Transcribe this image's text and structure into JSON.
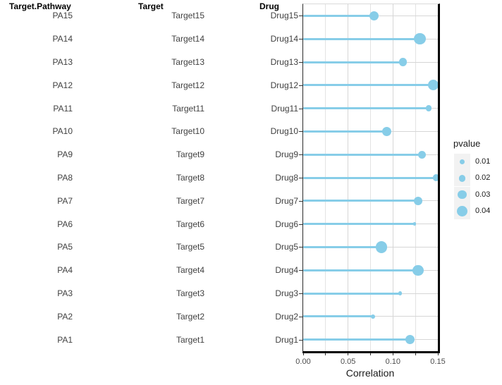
{
  "columns": {
    "pathway_header": "Target.Pathway",
    "target_header": "Target",
    "drug_header": "Drug"
  },
  "axis": {
    "xlabel": "Correlation",
    "tick_labels": [
      "0.00",
      "0.05",
      "0.10",
      "0.15"
    ]
  },
  "legend": {
    "title": "pvalue",
    "entries": [
      {
        "label": "0.01",
        "pvalue": 0.01
      },
      {
        "label": "0.02",
        "pvalue": 0.02
      },
      {
        "label": "0.03",
        "pvalue": 0.03
      },
      {
        "label": "0.04",
        "pvalue": 0.04
      }
    ]
  },
  "colors": {
    "lollipop": "#87cde8",
    "grid_major": "#d6d6d6",
    "grid_minor": "#e3e3e3",
    "axis_line": "#000000",
    "legend_key_bg": "#f2f2f2",
    "label_text": "#404040"
  },
  "chart_data": {
    "type": "lollipop",
    "orientation": "horizontal",
    "xlabel": "Correlation",
    "xlim": [
      0,
      0.152
    ],
    "x_major_ticks": [
      0.0,
      0.05,
      0.1,
      0.15
    ],
    "x_minor_step": 0.025,
    "grid": true,
    "legend_position": "right",
    "size_legend": {
      "title": "pvalue",
      "breaks": [
        0.01,
        0.02,
        0.03,
        0.04
      ]
    },
    "rows": [
      {
        "pathway": "PA15",
        "target": "Target15",
        "drug": "Drug15",
        "correlation": 0.079,
        "pvalue": 0.035
      },
      {
        "pathway": "PA14",
        "target": "Target14",
        "drug": "Drug14",
        "correlation": 0.13,
        "pvalue": 0.045
      },
      {
        "pathway": "PA13",
        "target": "Target13",
        "drug": "Drug13",
        "correlation": 0.111,
        "pvalue": 0.025
      },
      {
        "pathway": "PA12",
        "target": "Target12",
        "drug": "Drug12",
        "correlation": 0.145,
        "pvalue": 0.04
      },
      {
        "pathway": "PA11",
        "target": "Target11",
        "drug": "Drug11",
        "correlation": 0.14,
        "pvalue": 0.015
      },
      {
        "pathway": "PA10",
        "target": "Target10",
        "drug": "Drug10",
        "correlation": 0.093,
        "pvalue": 0.035
      },
      {
        "pathway": "PA9",
        "target": "Target9",
        "drug": "Drug9",
        "correlation": 0.132,
        "pvalue": 0.025
      },
      {
        "pathway": "PA8",
        "target": "Target8",
        "drug": "Drug8",
        "correlation": 0.148,
        "pvalue": 0.02
      },
      {
        "pathway": "PA7",
        "target": "Target7",
        "drug": "Drug7",
        "correlation": 0.128,
        "pvalue": 0.03
      },
      {
        "pathway": "PA6",
        "target": "Target6",
        "drug": "Drug6",
        "correlation": 0.124,
        "pvalue": 0.001
      },
      {
        "pathway": "PA5",
        "target": "Target5",
        "drug": "Drug5",
        "correlation": 0.087,
        "pvalue": 0.045
      },
      {
        "pathway": "PA4",
        "target": "Target4",
        "drug": "Drug4",
        "correlation": 0.128,
        "pvalue": 0.04
      },
      {
        "pathway": "PA3",
        "target": "Target3",
        "drug": "Drug3",
        "correlation": 0.108,
        "pvalue": 0.003
      },
      {
        "pathway": "PA2",
        "target": "Target2",
        "drug": "Drug2",
        "correlation": 0.078,
        "pvalue": 0.005
      },
      {
        "pathway": "PA1",
        "target": "Target1",
        "drug": "Drug1",
        "correlation": 0.119,
        "pvalue": 0.035
      }
    ]
  }
}
